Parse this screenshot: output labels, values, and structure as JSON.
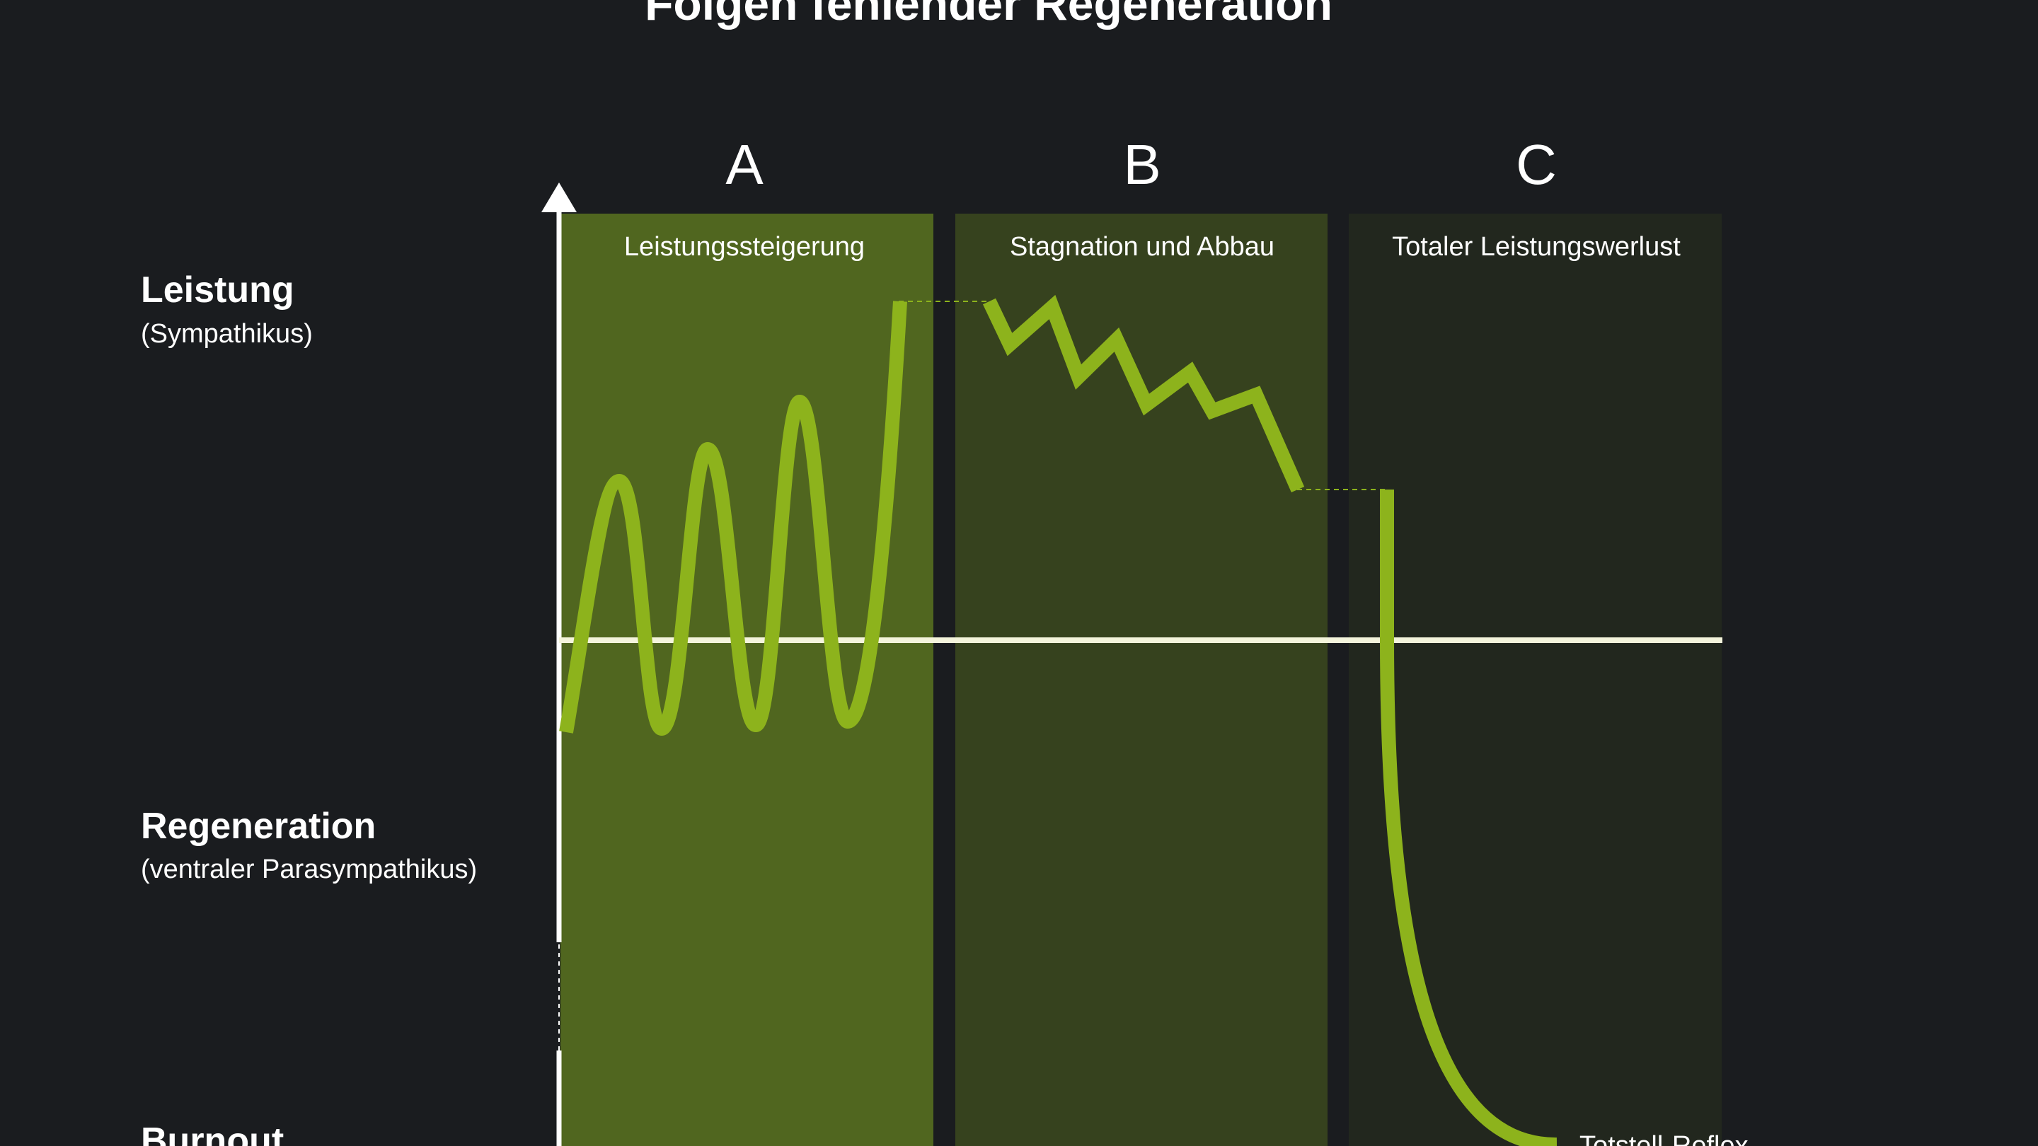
{
  "title": "Folgen fehlender Regeneration",
  "labels": {
    "leistung": "Leistung",
    "leistung_sub": "(Sympathikus)",
    "regeneration": "Regeneration",
    "regeneration_sub": "(ventraler Parasympathikus)",
    "burnout": "Burnout",
    "totstell": "Totstell-Reflex"
  },
  "phases": [
    {
      "letter": "A",
      "caption": "Leistungssteigerung",
      "fill": "#50661f"
    },
    {
      "letter": "B",
      "caption": "Stagnation und Abbau",
      "fill": "#36421e"
    },
    {
      "letter": "C",
      "caption": "Totaler Leistungswerlust",
      "fill": "#22271e"
    }
  ],
  "colors": {
    "background": "#1a1c1f",
    "curve": "#8db31c",
    "baseline": "#f4f4dc",
    "axis": "#ffffff"
  }
}
